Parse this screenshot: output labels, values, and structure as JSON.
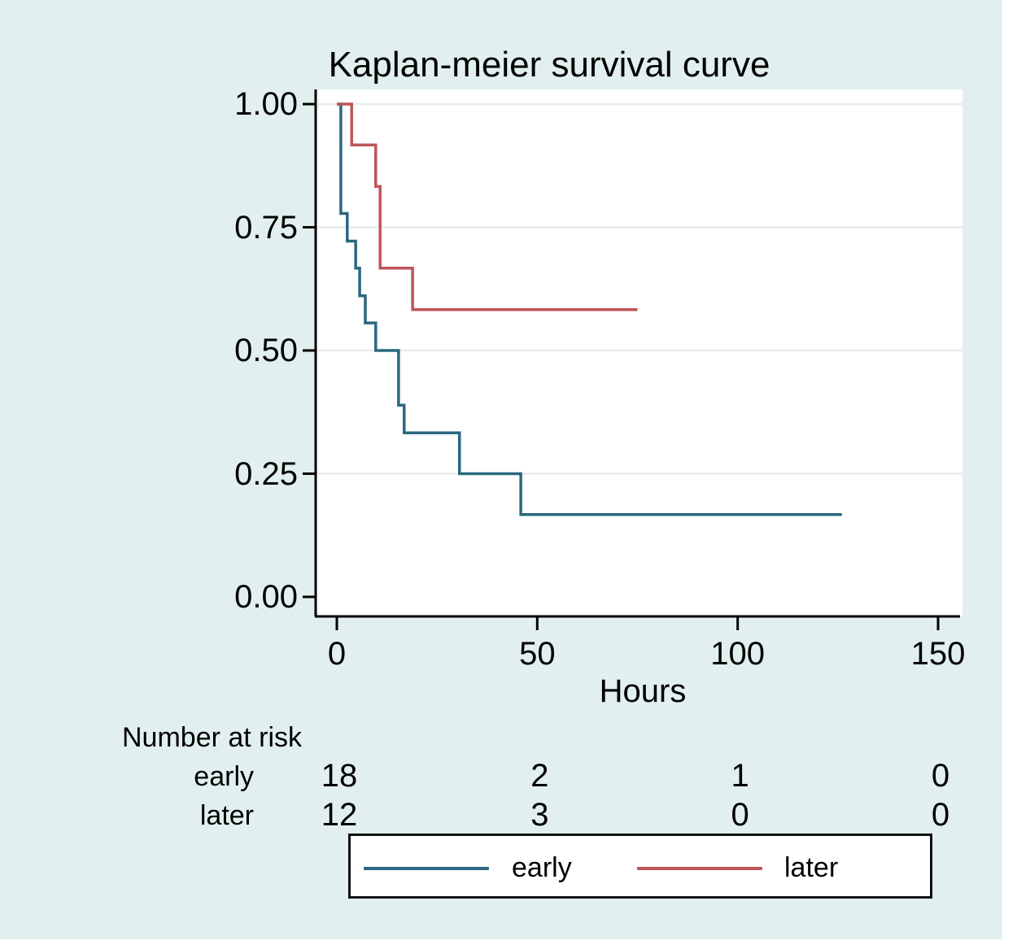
{
  "title": "Kaplan-meier survival curve",
  "colors": {
    "figure_background": "#e2efef",
    "plot_background": "#ffffff",
    "gridline": "#e8edee",
    "axis": "#000000",
    "early_line": "#2b6880",
    "later_line": "#bd5458"
  },
  "chart_data": {
    "type": "line",
    "subtype": "kaplan-meier-step",
    "title": "Kaplan-meier survival curve",
    "xlabel": "Hours",
    "ylabel": "",
    "xlim": [
      0,
      156
    ],
    "ylim": [
      0,
      1
    ],
    "x_ticks": [
      0,
      50,
      100,
      150
    ],
    "y_ticks": [
      0,
      0.25,
      0.5,
      0.75,
      1
    ],
    "y_tick_labels": [
      "0.00",
      "0.25",
      "0.50",
      "0.75",
      "1.00"
    ],
    "grid": "horizontal",
    "legend_position": "bottom",
    "series": [
      {
        "name": "early",
        "color": "#2b6880",
        "points": [
          [
            0,
            1.0
          ],
          [
            1,
            0.778
          ],
          [
            2.6,
            0.722
          ],
          [
            4.7,
            0.667
          ],
          [
            5.7,
            0.611
          ],
          [
            7.1,
            0.556
          ],
          [
            9.7,
            0.5
          ],
          [
            15.4,
            0.389
          ],
          [
            16.8,
            0.333
          ],
          [
            30.6,
            0.25
          ],
          [
            45.9,
            0.167
          ]
        ],
        "end_time": 126
      },
      {
        "name": "later",
        "color": "#bd5458",
        "points": [
          [
            0,
            1.0
          ],
          [
            3.7,
            0.917
          ],
          [
            9.7,
            0.833
          ],
          [
            10.8,
            0.667
          ],
          [
            18.9,
            0.583
          ]
        ],
        "end_time": 75
      }
    ]
  },
  "risk_table": {
    "header": "Number at risk",
    "columns": [
      0,
      50,
      100,
      150
    ],
    "rows": [
      {
        "label": "early",
        "values": [
          "18",
          "2",
          "1",
          "0"
        ]
      },
      {
        "label": "later",
        "values": [
          "12",
          "3",
          "0",
          "0"
        ]
      }
    ]
  },
  "legend": {
    "items": [
      {
        "label": "early",
        "color": "#2b6880"
      },
      {
        "label": "later",
        "color": "#bd5458"
      }
    ]
  }
}
